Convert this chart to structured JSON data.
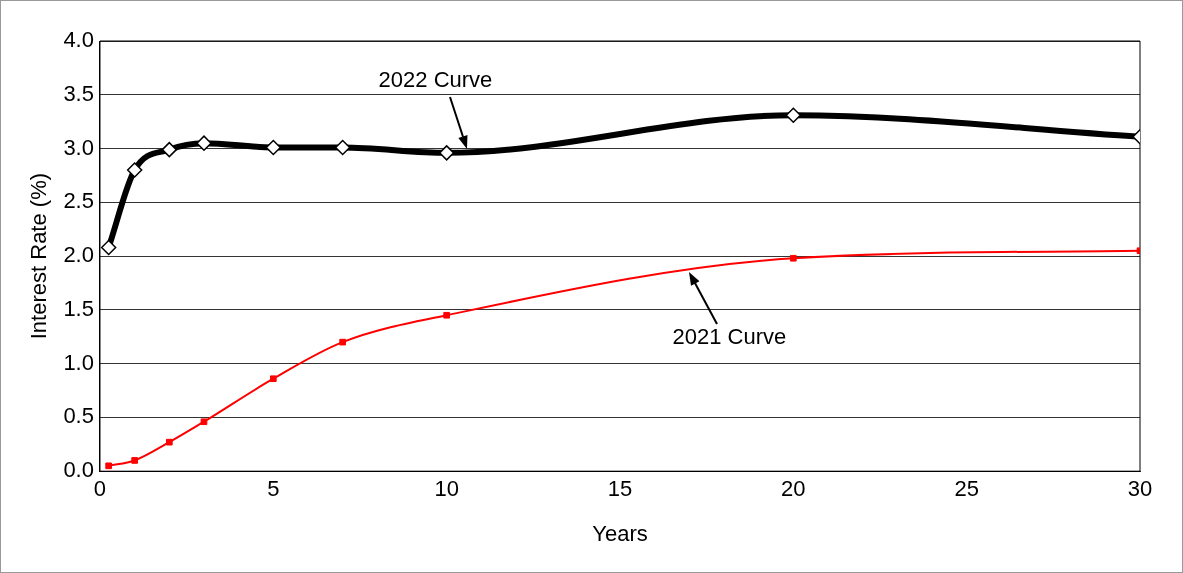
{
  "chart_data": {
    "type": "line",
    "xlabel": "Years",
    "ylabel": "Interest Rate (%)",
    "series": [
      {
        "color": "#000000",
        "marker": "diamond",
        "x": [
          0.25,
          1,
          2,
          3,
          5,
          7,
          10,
          20,
          30
        ],
        "values": [
          2.08,
          2.8,
          2.99,
          3.05,
          3.01,
          3.01,
          2.96,
          3.31,
          3.11
        ]
      },
      {
        "color": "#ff0000",
        "marker": "square",
        "x": [
          0.25,
          1,
          2,
          3,
          5,
          7,
          10,
          20,
          30
        ],
        "values": [
          0.05,
          0.1,
          0.27,
          0.46,
          0.86,
          1.2,
          1.45,
          1.98,
          2.05
        ]
      }
    ],
    "annotations": [
      {
        "text": "2022 Curve",
        "x": 10.6,
        "y": 3.0
      },
      {
        "text": "2021 Curve",
        "x": 17,
        "y": 1.85
      }
    ],
    "xlim": [
      0,
      30
    ],
    "xticks": [
      0,
      5,
      10,
      15,
      20,
      25,
      30
    ],
    "ylim": [
      0,
      4
    ],
    "yticks": [
      {
        "value": 0,
        "label": "0.0"
      },
      {
        "value": 0.5,
        "label": "0.5"
      },
      {
        "value": 1,
        "label": "1.0"
      },
      {
        "value": 1.5,
        "label": "1.5"
      },
      {
        "value": 2,
        "label": "2.0"
      },
      {
        "value": 2.5,
        "label": "2.5"
      },
      {
        "value": 3,
        "label": "3.0"
      },
      {
        "value": 3.5,
        "label": "3.5"
      },
      {
        "value": 4,
        "label": "4.0"
      }
    ],
    "grid": "y",
    "legend": false,
    "line_style": "solid"
  }
}
